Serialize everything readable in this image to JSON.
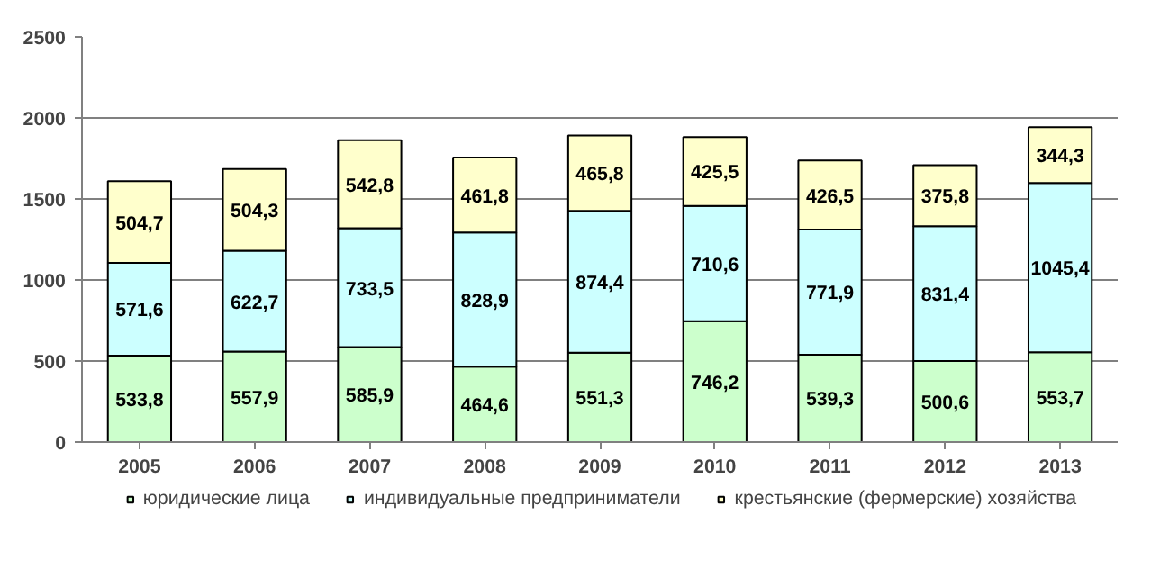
{
  "chart_data": {
    "type": "bar",
    "stacked": true,
    "categories": [
      "2005",
      "2006",
      "2007",
      "2008",
      "2009",
      "2010",
      "2011",
      "2012",
      "2013"
    ],
    "series": [
      {
        "name": "юридические лица",
        "color": "#ccffcc",
        "values": [
          533.8,
          557.9,
          585.9,
          464.6,
          551.3,
          746.2,
          539.3,
          500.6,
          553.7
        ],
        "value_labels": [
          "533,8",
          "557,9",
          "585,9",
          "464,6",
          "551,3",
          "746,2",
          "539,3",
          "500,6",
          "553,7"
        ]
      },
      {
        "name": "индивидуальные предприниматели",
        "color": "#ccffff",
        "values": [
          571.6,
          622.7,
          733.5,
          828.9,
          874.4,
          710.6,
          771.9,
          831.4,
          1045.4
        ],
        "value_labels": [
          "571,6",
          "622,7",
          "733,5",
          "828,9",
          "874,4",
          "710,6",
          "771,9",
          "831,4",
          "1045,4"
        ]
      },
      {
        "name": "крестьянские (фермерские) хозяйства",
        "color": "#ffffcc",
        "values": [
          504.7,
          504.3,
          542.8,
          461.8,
          465.8,
          425.5,
          426.5,
          375.8,
          344.3
        ],
        "value_labels": [
          "504,7",
          "504,3",
          "542,8",
          "461,8",
          "465,8",
          "425,5",
          "426,5",
          "375,8",
          "344,3"
        ]
      }
    ],
    "ylim": [
      0,
      2500
    ],
    "yticks": [
      0,
      500,
      1000,
      1500,
      2000,
      2500
    ],
    "grid": "y",
    "legend": "bottom"
  }
}
